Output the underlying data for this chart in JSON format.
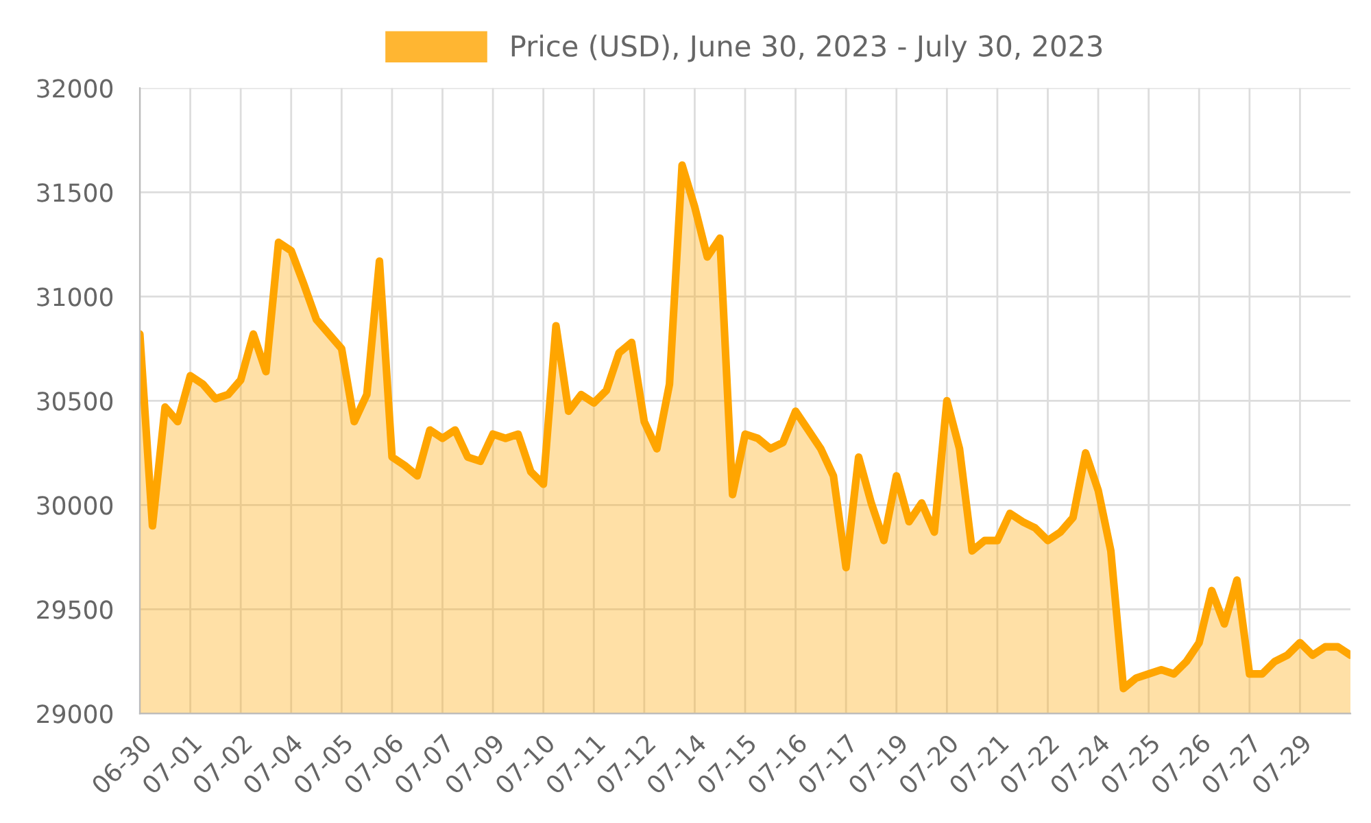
{
  "chart_data": {
    "type": "area",
    "categories": [
      "06-30",
      null,
      null,
      null,
      "07-01",
      null,
      null,
      null,
      "07-02",
      null,
      null,
      null,
      "07-04",
      null,
      null,
      null,
      "07-05",
      null,
      null,
      null,
      "07-06",
      null,
      null,
      null,
      "07-07",
      null,
      null,
      null,
      "07-09",
      null,
      null,
      null,
      "07-10",
      null,
      null,
      null,
      "07-11",
      null,
      null,
      null,
      "07-12",
      null,
      null,
      null,
      "07-14",
      null,
      null,
      null,
      "07-15",
      null,
      null,
      null,
      "07-16",
      null,
      null,
      null,
      "07-17",
      null,
      null,
      null,
      "07-19",
      null,
      null,
      null,
      "07-20",
      null,
      null,
      null,
      "07-21",
      null,
      null,
      null,
      "07-22",
      null,
      null,
      null,
      "07-24",
      null,
      null,
      null,
      "07-25",
      null,
      null,
      null,
      "07-26",
      null,
      null,
      null,
      "07-27",
      null,
      null,
      null,
      "07-29",
      null,
      null,
      null,
      null
    ],
    "series": [
      {
        "name": "Price (USD), June 30, 2023 - July 30, 2023",
        "color": "#ffa500",
        "values": [
          30820,
          29900,
          30470,
          30400,
          30620,
          30580,
          30510,
          30530,
          30600,
          30820,
          30640,
          31260,
          31220,
          31060,
          30890,
          30820,
          30750,
          30400,
          30530,
          31170,
          30230,
          30190,
          30140,
          30360,
          30320,
          30360,
          30230,
          30210,
          30340,
          30320,
          30340,
          30160,
          30100,
          30860,
          30450,
          30530,
          30490,
          30550,
          30730,
          30780,
          30400,
          30270,
          30580,
          31630,
          31430,
          31190,
          31280,
          30050,
          30340,
          30320,
          30270,
          30300,
          30450,
          30360,
          30270,
          30140,
          29700,
          30230,
          30010,
          29830,
          30140,
          29920,
          30010,
          29870,
          30500,
          30270,
          29780,
          29830,
          29830,
          29960,
          29920,
          29890,
          29830,
          29870,
          29940,
          30250,
          30070,
          29780,
          29120,
          29170,
          29190,
          29210,
          29190,
          29250,
          29340,
          29590,
          29430,
          29640,
          29190,
          29190,
          29250,
          29280,
          29340,
          29280,
          29320,
          29320,
          29280
        ]
      }
    ],
    "ylim": [
      29000,
      32000
    ],
    "yticks": [
      29000,
      29500,
      30000,
      30500,
      31000,
      31500,
      32000
    ],
    "grid": true,
    "legend": "top",
    "marker": "none",
    "line_style": "solid"
  }
}
